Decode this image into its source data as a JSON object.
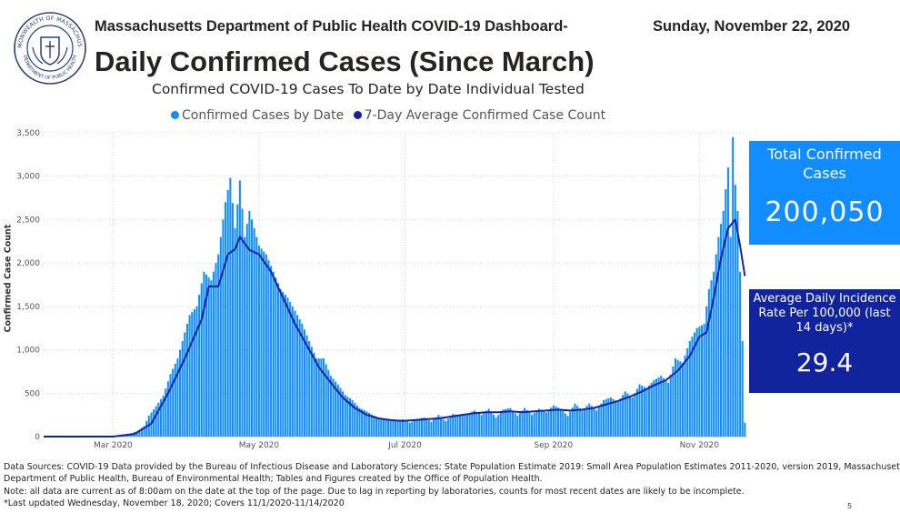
{
  "header": {
    "line1": "Massachusetts Department of Public Health COVID-19 Dashboard-",
    "date": "Sunday, November 22, 2020",
    "title": "Daily Confirmed Cases (Since March)",
    "subtitle": "Confirmed COVID-19 Cases To Date by Date Individual Tested"
  },
  "seal": {
    "outer_text": "COMMONWEALTH OF MASSACHUSETTS",
    "inner_text": "DEPARTMENT OF PUBLIC HEALTH"
  },
  "legend": [
    {
      "label": "Confirmed Cases by Date",
      "color": "#118dff"
    },
    {
      "label": "7-Day Average Confirmed Case Count",
      "color": "#12239e"
    }
  ],
  "cards": {
    "total": {
      "label": "Total Confirmed Cases",
      "value": "200,050",
      "color": "#118dff"
    },
    "rate": {
      "label": "Average Daily Incidence Rate Per 100,000 (last 14 days)*",
      "value": "29.4",
      "color": "#12239e"
    }
  },
  "chart_data": {
    "type": "bar",
    "ylabel": "Confirmed Case Count",
    "ylim": [
      0,
      3500
    ],
    "yticks": [
      "0",
      "500",
      "1,000",
      "1,500",
      "2,000",
      "2,500",
      "3,000",
      "3,500"
    ],
    "grid": true,
    "legend_position": "top",
    "x_range": [
      "2020-02-01",
      "2020-11-21"
    ],
    "xticks": [
      {
        "label": "Mar 2020",
        "date": "2020-03-01"
      },
      {
        "label": "May 2020",
        "date": "2020-05-01"
      },
      {
        "label": "Jul 2020",
        "date": "2020-07-01"
      },
      {
        "label": "Sep 2020",
        "date": "2020-09-01"
      },
      {
        "label": "Nov 2020",
        "date": "2020-11-01"
      }
    ],
    "series": [
      {
        "name": "Confirmed Cases by Date",
        "kind": "bar",
        "color": "#118dff",
        "points": [
          [
            "2020-03-01",
            2
          ],
          [
            "2020-03-05",
            15
          ],
          [
            "2020-03-08",
            35
          ],
          [
            "2020-03-11",
            60
          ],
          [
            "2020-03-14",
            120
          ],
          [
            "2020-03-16",
            240
          ],
          [
            "2020-03-19",
            350
          ],
          [
            "2020-03-22",
            470
          ],
          [
            "2020-03-25",
            720
          ],
          [
            "2020-03-28",
            900
          ],
          [
            "2020-03-31",
            1200
          ],
          [
            "2020-04-02",
            1400
          ],
          [
            "2020-04-05",
            1500
          ],
          [
            "2020-04-08",
            1900
          ],
          [
            "2020-04-11",
            1800
          ],
          [
            "2020-04-14",
            2100
          ],
          [
            "2020-04-17",
            2700
          ],
          [
            "2020-04-19",
            2980
          ],
          [
            "2020-04-21",
            2400
          ],
          [
            "2020-04-23",
            2950
          ],
          [
            "2020-04-25",
            2300
          ],
          [
            "2020-04-27",
            2600
          ],
          [
            "2020-04-29",
            2400
          ],
          [
            "2020-05-01",
            2200
          ],
          [
            "2020-05-04",
            2100
          ],
          [
            "2020-05-07",
            1900
          ],
          [
            "2020-05-10",
            1700
          ],
          [
            "2020-05-13",
            1600
          ],
          [
            "2020-05-16",
            1450
          ],
          [
            "2020-05-19",
            1300
          ],
          [
            "2020-05-22",
            1100
          ],
          [
            "2020-05-25",
            900
          ],
          [
            "2020-05-28",
            900
          ],
          [
            "2020-05-31",
            700
          ],
          [
            "2020-06-03",
            600
          ],
          [
            "2020-06-06",
            480
          ],
          [
            "2020-06-09",
            420
          ],
          [
            "2020-06-12",
            330
          ],
          [
            "2020-06-15",
            290
          ],
          [
            "2020-06-18",
            240
          ],
          [
            "2020-06-21",
            200
          ],
          [
            "2020-06-24",
            190
          ],
          [
            "2020-06-27",
            180
          ],
          [
            "2020-06-30",
            200
          ],
          [
            "2020-07-03",
            160
          ],
          [
            "2020-07-06",
            200
          ],
          [
            "2020-07-09",
            220
          ],
          [
            "2020-07-12",
            170
          ],
          [
            "2020-07-15",
            250
          ],
          [
            "2020-07-18",
            180
          ],
          [
            "2020-07-21",
            260
          ],
          [
            "2020-07-24",
            240
          ],
          [
            "2020-07-27",
            260
          ],
          [
            "2020-07-30",
            300
          ],
          [
            "2020-08-02",
            250
          ],
          [
            "2020-08-05",
            320
          ],
          [
            "2020-08-08",
            220
          ],
          [
            "2020-08-11",
            310
          ],
          [
            "2020-08-14",
            330
          ],
          [
            "2020-08-17",
            240
          ],
          [
            "2020-08-20",
            330
          ],
          [
            "2020-08-23",
            250
          ],
          [
            "2020-08-26",
            320
          ],
          [
            "2020-08-29",
            280
          ],
          [
            "2020-09-01",
            360
          ],
          [
            "2020-09-04",
            320
          ],
          [
            "2020-09-07",
            240
          ],
          [
            "2020-09-10",
            380
          ],
          [
            "2020-09-13",
            300
          ],
          [
            "2020-09-16",
            380
          ],
          [
            "2020-09-19",
            300
          ],
          [
            "2020-09-22",
            420
          ],
          [
            "2020-09-25",
            450
          ],
          [
            "2020-09-28",
            400
          ],
          [
            "2020-10-01",
            520
          ],
          [
            "2020-10-04",
            450
          ],
          [
            "2020-10-07",
            600
          ],
          [
            "2020-10-10",
            560
          ],
          [
            "2020-10-13",
            650
          ],
          [
            "2020-10-16",
            700
          ],
          [
            "2020-10-19",
            620
          ],
          [
            "2020-10-22",
            900
          ],
          [
            "2020-10-25",
            850
          ],
          [
            "2020-10-28",
            1100
          ],
          [
            "2020-10-31",
            1250
          ],
          [
            "2020-11-03",
            1300
          ],
          [
            "2020-11-05",
            1700
          ],
          [
            "2020-11-07",
            1900
          ],
          [
            "2020-11-09",
            2300
          ],
          [
            "2020-11-11",
            2600
          ],
          [
            "2020-11-13",
            3100
          ],
          [
            "2020-11-14",
            2300
          ],
          [
            "2020-11-15",
            3450
          ],
          [
            "2020-11-16",
            2900
          ],
          [
            "2020-11-17",
            2600
          ],
          [
            "2020-11-18",
            1900
          ],
          [
            "2020-11-19",
            1100
          ],
          [
            "2020-11-20",
            160
          ]
        ]
      },
      {
        "name": "7-Day Average Confirmed Case Count",
        "kind": "line",
        "color": "#12239e",
        "points": [
          [
            "2020-02-01",
            0
          ],
          [
            "2020-03-01",
            0
          ],
          [
            "2020-03-10",
            30
          ],
          [
            "2020-03-17",
            150
          ],
          [
            "2020-03-24",
            500
          ],
          [
            "2020-03-31",
            900
          ],
          [
            "2020-04-07",
            1350
          ],
          [
            "2020-04-10",
            1730
          ],
          [
            "2020-04-14",
            1730
          ],
          [
            "2020-04-18",
            2100
          ],
          [
            "2020-04-21",
            2160
          ],
          [
            "2020-04-23",
            2300
          ],
          [
            "2020-04-27",
            2150
          ],
          [
            "2020-05-01",
            2100
          ],
          [
            "2020-05-06",
            1900
          ],
          [
            "2020-05-11",
            1600
          ],
          [
            "2020-05-16",
            1300
          ],
          [
            "2020-05-21",
            1050
          ],
          [
            "2020-05-26",
            800
          ],
          [
            "2020-05-31",
            620
          ],
          [
            "2020-06-05",
            450
          ],
          [
            "2020-06-10",
            330
          ],
          [
            "2020-06-15",
            250
          ],
          [
            "2020-06-20",
            210
          ],
          [
            "2020-06-25",
            190
          ],
          [
            "2020-06-30",
            180
          ],
          [
            "2020-07-05",
            190
          ],
          [
            "2020-07-10",
            200
          ],
          [
            "2020-07-15",
            210
          ],
          [
            "2020-07-20",
            230
          ],
          [
            "2020-07-25",
            250
          ],
          [
            "2020-07-30",
            270
          ],
          [
            "2020-08-04",
            280
          ],
          [
            "2020-08-09",
            280
          ],
          [
            "2020-08-14",
            290
          ],
          [
            "2020-08-19",
            280
          ],
          [
            "2020-08-24",
            290
          ],
          [
            "2020-08-29",
            300
          ],
          [
            "2020-09-03",
            310
          ],
          [
            "2020-09-08",
            300
          ],
          [
            "2020-09-13",
            310
          ],
          [
            "2020-09-18",
            330
          ],
          [
            "2020-09-23",
            370
          ],
          [
            "2020-09-28",
            410
          ],
          [
            "2020-10-03",
            460
          ],
          [
            "2020-10-08",
            520
          ],
          [
            "2020-10-13",
            590
          ],
          [
            "2020-10-18",
            650
          ],
          [
            "2020-10-23",
            760
          ],
          [
            "2020-10-28",
            930
          ],
          [
            "2020-11-01",
            1150
          ],
          [
            "2020-11-04",
            1200
          ],
          [
            "2020-11-07",
            1600
          ],
          [
            "2020-11-10",
            2050
          ],
          [
            "2020-11-13",
            2400
          ],
          [
            "2020-11-16",
            2500
          ],
          [
            "2020-11-18",
            2200
          ],
          [
            "2020-11-20",
            1850
          ]
        ]
      }
    ]
  },
  "footer": {
    "line1": "Data Sources: COVID-19 Data provided by the Bureau of Infectious Disease and Laboratory Sciences; State Population Estimate 2019: Small Area Population Estimates 2011-2020, version 2019, Massachusetts",
    "line2": "Department of Public Health, Bureau of Environmental Health; Tables and Figures created by the Office of Population Health.",
    "line3": "Note: all data are current as of 8:00am on the date at the top of the page. Due to lag in reporting by laboratories, counts for most recent dates are likely to be incomplete.",
    "line4": "*Last updated Wednesday, November 18, 2020; Covers 11/1/2020-11/14/2020"
  },
  "page_number": "5"
}
